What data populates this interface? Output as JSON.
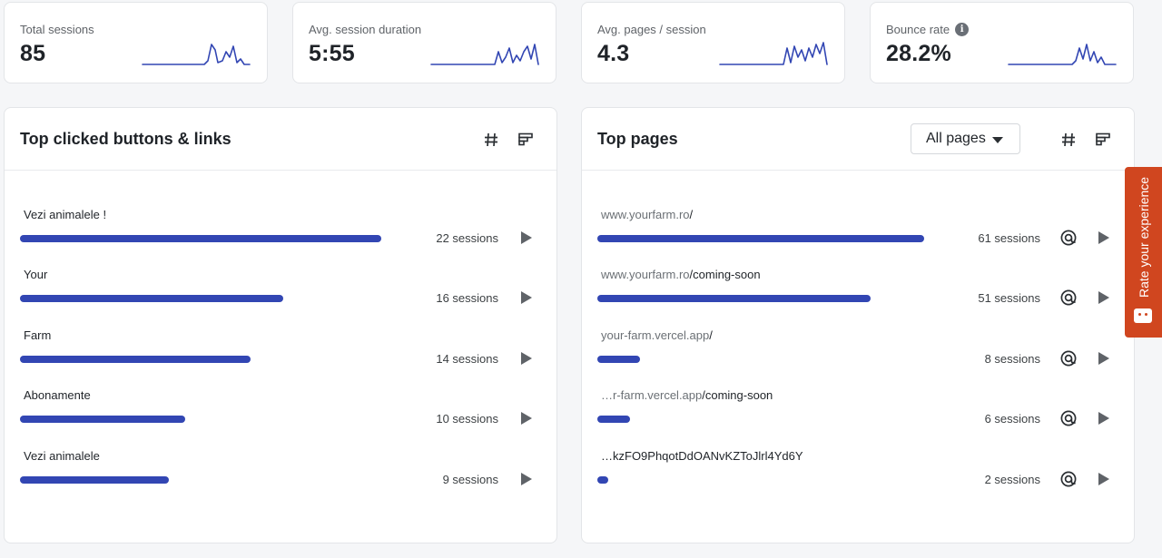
{
  "kpis": [
    {
      "label": "Total sessions",
      "value": "85",
      "info": false
    },
    {
      "label": "Avg. session duration",
      "value": "5:55",
      "info": false
    },
    {
      "label": "Avg. pages / session",
      "value": "4.3",
      "info": false
    },
    {
      "label": "Bounce rate",
      "value": "28.2%",
      "info": true
    }
  ],
  "clicked": {
    "title": "Top clicked buttons & links",
    "rows": [
      {
        "label": "Vezi animalele !",
        "count": "22 sessions",
        "fraction": 0.995
      },
      {
        "label": "Your",
        "count": "16 sessions",
        "fraction": 0.725
      },
      {
        "label": "Farm",
        "count": "14 sessions",
        "fraction": 0.635
      },
      {
        "label": "Abonamente",
        "count": "10 sessions",
        "fraction": 0.455
      },
      {
        "label": "Vezi animalele",
        "count": "9 sessions",
        "fraction": 0.41
      }
    ]
  },
  "pages": {
    "title": "Top pages",
    "filter": "All pages",
    "rows": [
      {
        "prefix": "www.yourfarm.ro",
        "path": "/",
        "count": "61 sessions",
        "fraction": 0.9
      },
      {
        "prefix": "www.yourfarm.ro",
        "path": "/coming-soon",
        "count": "51 sessions",
        "fraction": 0.752
      },
      {
        "prefix": "your-farm.vercel.app",
        "path": "/",
        "count": "8 sessions",
        "fraction": 0.118
      },
      {
        "prefix": "…r-farm.vercel.app",
        "path": "/coming-soon",
        "count": "6 sessions",
        "fraction": 0.09
      },
      {
        "prefix": "",
        "path": "…kzFO9PhqotDdOANvKZToJlrl4Yd6Y",
        "count": "2 sessions",
        "fraction": 0.03
      }
    ]
  },
  "feedback": {
    "label": "Rate your experience"
  },
  "colors": {
    "accent": "#3246b3",
    "feedback": "#d0461f"
  }
}
